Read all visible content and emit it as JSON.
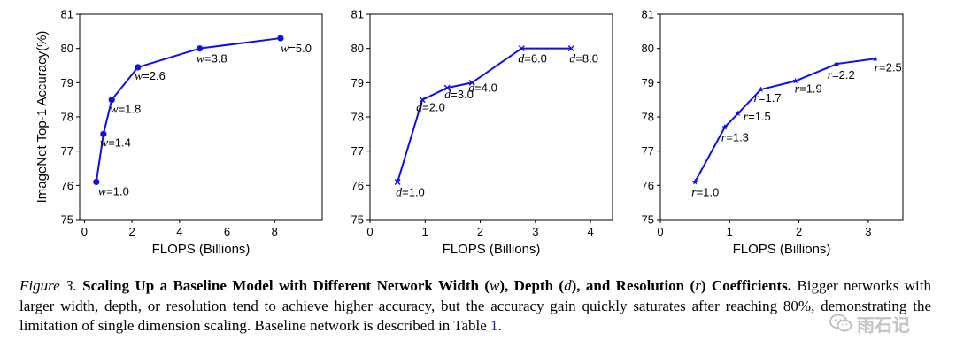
{
  "chart_data": [
    {
      "type": "line",
      "marker": "circle",
      "color": "#1010e6",
      "ylabel": "ImageNet Top-1 Accuracy(%)",
      "xlabel": "FLOPS (Billions)",
      "xlim": [
        -0.2,
        10.0
      ],
      "ylim": [
        75,
        81
      ],
      "xticks": [
        "0",
        "2",
        "4",
        "6",
        "8"
      ],
      "yticks": [
        "75",
        "76",
        "77",
        "78",
        "79",
        "80",
        "81"
      ],
      "series": [
        {
          "x": [
            0.5,
            0.8,
            1.15,
            2.25,
            4.85,
            8.25
          ],
          "y": [
            76.1,
            77.5,
            78.5,
            79.45,
            80.0,
            80.3
          ],
          "labels": [
            {
              "var": "w",
              "text": "=1.0"
            },
            {
              "var": "w",
              "text": "=1.4"
            },
            {
              "var": "w",
              "text": "=1.8"
            },
            {
              "var": "w",
              "text": "=2.6"
            },
            {
              "var": "w",
              "text": "=3.8"
            },
            {
              "var": "w",
              "text": "=5.0"
            }
          ]
        }
      ]
    },
    {
      "type": "line",
      "marker": "x",
      "color": "#1010e6",
      "xlabel": "FLOPS (Billions)",
      "xlim": [
        0,
        4.4
      ],
      "ylim": [
        75,
        81
      ],
      "xticks": [
        "0",
        "1",
        "2",
        "3",
        "4"
      ],
      "yticks": [
        "75",
        "76",
        "77",
        "78",
        "79",
        "80",
        "81"
      ],
      "series": [
        {
          "x": [
            0.5,
            0.95,
            1.4,
            1.85,
            2.75,
            3.65
          ],
          "y": [
            76.1,
            78.5,
            78.85,
            79.0,
            80.0,
            80.0
          ],
          "labels": [
            {
              "var": "d",
              "text": "=1.0"
            },
            {
              "var": "d",
              "text": "=2.0"
            },
            {
              "var": "d",
              "text": "=3.0"
            },
            {
              "var": "d",
              "text": "=4.0"
            },
            {
              "var": "d",
              "text": "=6.0"
            },
            {
              "var": "d",
              "text": "=8.0"
            }
          ]
        }
      ]
    },
    {
      "type": "line",
      "marker": "star",
      "color": "#1010e6",
      "xlabel": "FLOPS (Billions)",
      "xlim": [
        0,
        3.5
      ],
      "ylim": [
        75,
        81
      ],
      "xticks": [
        "0",
        "1",
        "2",
        "3"
      ],
      "yticks": [
        "75",
        "76",
        "77",
        "78",
        "79",
        "80",
        "81"
      ],
      "series": [
        {
          "x": [
            0.5,
            0.93,
            1.12,
            1.45,
            1.95,
            2.55,
            3.1
          ],
          "y": [
            76.1,
            77.7,
            78.1,
            78.8,
            79.05,
            79.55,
            79.7
          ],
          "labels": [
            {
              "var": "r",
              "text": "=1.0"
            },
            {
              "var": "r",
              "text": "=1.3"
            },
            {
              "var": "r",
              "text": "=1.5"
            },
            {
              "var": "r",
              "text": "=1.7"
            },
            {
              "var": "r",
              "text": "=1.9"
            },
            {
              "var": "r",
              "text": "=2.2"
            },
            {
              "var": "r",
              "text": "=2.5"
            }
          ]
        }
      ]
    }
  ],
  "caption": {
    "figure_label": "Figure 3.",
    "bold_title_1": " Scaling Up a Baseline Model with Different Network Width (",
    "var_w": "w",
    "bold_title_2": "), Depth (",
    "var_d": "d",
    "bold_title_3": "), and Resolution (",
    "var_r": "r",
    "bold_title_4": ") Coefficients.",
    "body": " Bigger networks with larger width, depth, or resolution tend to achieve higher accuracy, but the accuracy gain quickly saturates after reaching 80%, demonstrating the limitation of single dimension scaling. Baseline network is described in Table ",
    "table_ref": "1",
    "end": "."
  },
  "watermark": {
    "text": "雨石记",
    "icon": "wechat-icon"
  }
}
